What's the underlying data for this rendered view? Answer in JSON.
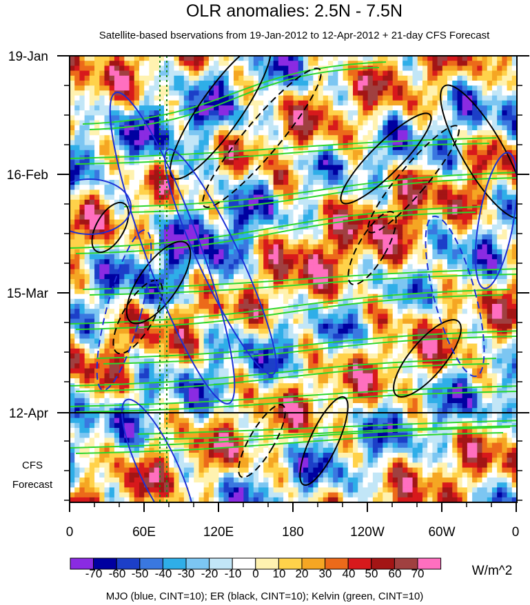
{
  "chart_data": {
    "type": "heatmap",
    "title": "OLR anomalies: 2.5N - 7.5N",
    "subtitle": "Satellite-based bservations from 19-Jan-2012 to 12-Apr-2012 + 21-day CFS Forecast",
    "x_ticks": [
      "0",
      "60E",
      "120E",
      "180",
      "120W",
      "60W",
      "0"
    ],
    "y_ticks": [
      "19-Jan",
      "16-Feb",
      "15-Mar",
      "12-Apr"
    ],
    "forecast_label": [
      "CFS",
      "Forecast"
    ],
    "colorbar": {
      "levels": [
        "-70",
        "-60",
        "-50",
        "-40",
        "-30",
        "-20",
        "-10",
        "0",
        "10",
        "20",
        "30",
        "40",
        "50",
        "60",
        "70"
      ],
      "colors": [
        "#8a2be2",
        "#0000a0",
        "#1c3fc8",
        "#3a78e0",
        "#2faee8",
        "#7cc6f2",
        "#c2e6f7",
        "#ffffff",
        "#fff2b0",
        "#ffd24a",
        "#f5a623",
        "#ec6a1a",
        "#d7191c",
        "#a31515",
        "#a04040",
        "#ff6fbf"
      ],
      "units": "W/m^2"
    },
    "caption": "MJO (blue, CINT=10); ER (black, CINT=10); Kelvin (green, CINT=10)",
    "contour_colors": {
      "mjo": "#1a2fd6",
      "er": "#000000",
      "kelvin": "#2bd62b"
    }
  }
}
